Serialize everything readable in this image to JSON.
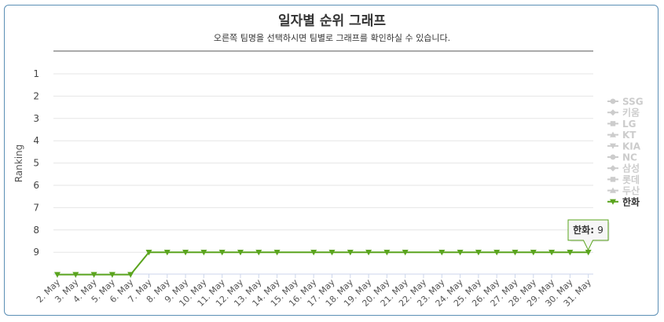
{
  "chart_data": {
    "type": "line",
    "title": "일자별 순위 그래프",
    "subtitle": "오른쪽 팀명을 선택하시면 팀별로 그래프를 확인하실 수 있습니다.",
    "ylabel": "Ranking",
    "xlabel": "",
    "y_ticks": [
      "1",
      "2",
      "3",
      "4",
      "5",
      "6",
      "7",
      "8",
      "9"
    ],
    "ylim": [
      1,
      10
    ],
    "y_reversed": true,
    "categories": [
      "2. May",
      "3. May",
      "4. May",
      "5. May",
      "6. May",
      "7. May",
      "8. May",
      "9. May",
      "10. May",
      "11. May",
      "12. May",
      "13. May",
      "14. May",
      "15. May",
      "16. May",
      "17. May",
      "18. May",
      "19. May",
      "20. May",
      "21. May",
      "22. May",
      "23. May",
      "24. May",
      "25. May",
      "26. May",
      "27. May",
      "28. May",
      "29. May",
      "30. May",
      "31. May"
    ],
    "legend_position": "right",
    "grid": true,
    "series": [
      {
        "name": "SSG",
        "visible": false,
        "marker": "circle"
      },
      {
        "name": "키움",
        "visible": false,
        "marker": "diamond"
      },
      {
        "name": "LG",
        "visible": false,
        "marker": "square"
      },
      {
        "name": "KT",
        "visible": false,
        "marker": "triangle"
      },
      {
        "name": "KIA",
        "visible": false,
        "marker": "triangle-down"
      },
      {
        "name": "NC",
        "visible": false,
        "marker": "circle"
      },
      {
        "name": "삼성",
        "visible": false,
        "marker": "diamond"
      },
      {
        "name": "롯데",
        "visible": false,
        "marker": "square"
      },
      {
        "name": "두산",
        "visible": false,
        "marker": "triangle"
      },
      {
        "name": "한화",
        "visible": true,
        "marker": "triangle-down",
        "color": "#5aa41e",
        "values": [
          10,
          10,
          10,
          10,
          10,
          9,
          9,
          9,
          9,
          9,
          9,
          9,
          9,
          null,
          9,
          9,
          9,
          9,
          9,
          9,
          null,
          9,
          9,
          9,
          9,
          9,
          9,
          9,
          9,
          9
        ]
      }
    ],
    "tooltip": {
      "series": "한화",
      "label": "한화",
      "value": "9",
      "category": "31. May"
    },
    "hidden_color": "#cccccc"
  }
}
